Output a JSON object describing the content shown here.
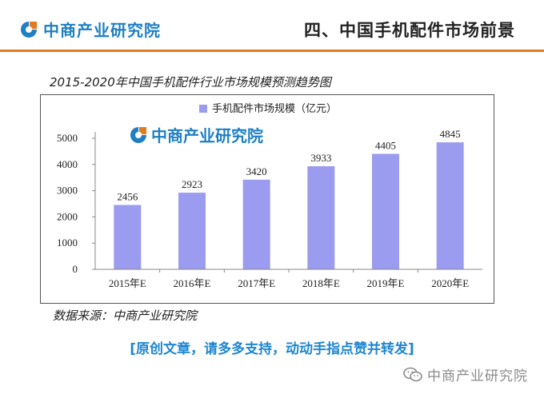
{
  "header": {
    "logo_text": "中商产业研究院",
    "title": "四、中国手机配件市场前景"
  },
  "chart_title": "2015-2020年中国手机配件行业市场规模预测趋势图",
  "watermark_text": "中商产业研究院",
  "source": "数据来源：中商产业研究院",
  "footer_cta": "[原创文章，请多多支持，动动手指点赞并转发]",
  "wechat_label": "中商产业研究院",
  "colors": {
    "brand_blue": "#1f7fc4",
    "brand_orange": "#e07b1f",
    "bar": "#9b9bef",
    "cta_blue": "#1e86d0"
  },
  "chart_data": {
    "type": "bar",
    "title": "2015-2020年中国手机配件行业市场规模预测趋势图",
    "categories": [
      "2015年E",
      "2016年E",
      "2017年E",
      "2018年E",
      "2019年E",
      "2020年E"
    ],
    "series": [
      {
        "name": "手机配件市场规模（亿元）",
        "values": [
          2456,
          2923,
          3420,
          3933,
          4405,
          4845
        ]
      }
    ],
    "ylim": [
      0,
      5000
    ],
    "yticks": [
      0,
      1000,
      2000,
      3000,
      4000,
      5000
    ],
    "grid": false,
    "legend": "top",
    "xlabel": "",
    "ylabel": ""
  }
}
